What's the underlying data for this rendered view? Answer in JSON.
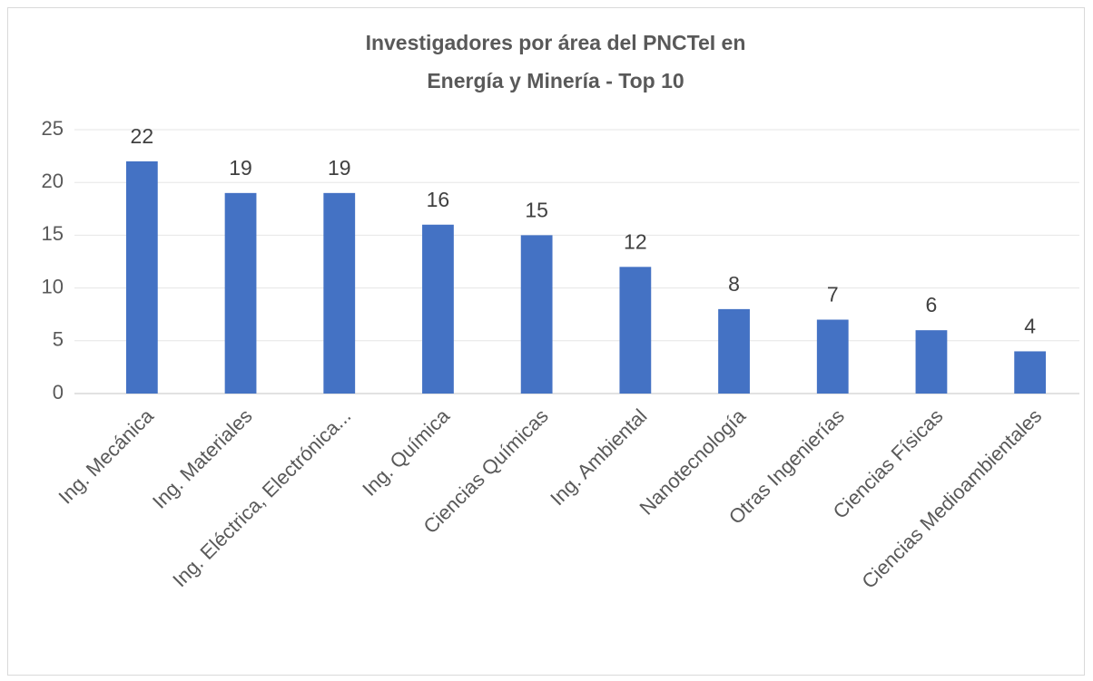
{
  "chart_data": {
    "type": "bar",
    "title": [
      "Investigadores por área del PNCTeI en",
      "Energía y Minería - Top 10"
    ],
    "categories": [
      "Ing. Mecánica",
      "Ing. Materiales",
      "Ing. Eléctrica, Electrónica...",
      "Ing. Química",
      "Ciencias Químicas",
      "Ing. Ambiental",
      "Nanotecnología",
      "Otras Ingenierías",
      "Ciencias Físicas",
      "Ciencias Medioambientales"
    ],
    "values": [
      22,
      19,
      19,
      16,
      15,
      12,
      8,
      7,
      6,
      4
    ],
    "color": "#4472c4",
    "ylim": [
      0,
      25
    ],
    "yticks": [
      0,
      5,
      10,
      15,
      20,
      25
    ],
    "grid": true
  }
}
